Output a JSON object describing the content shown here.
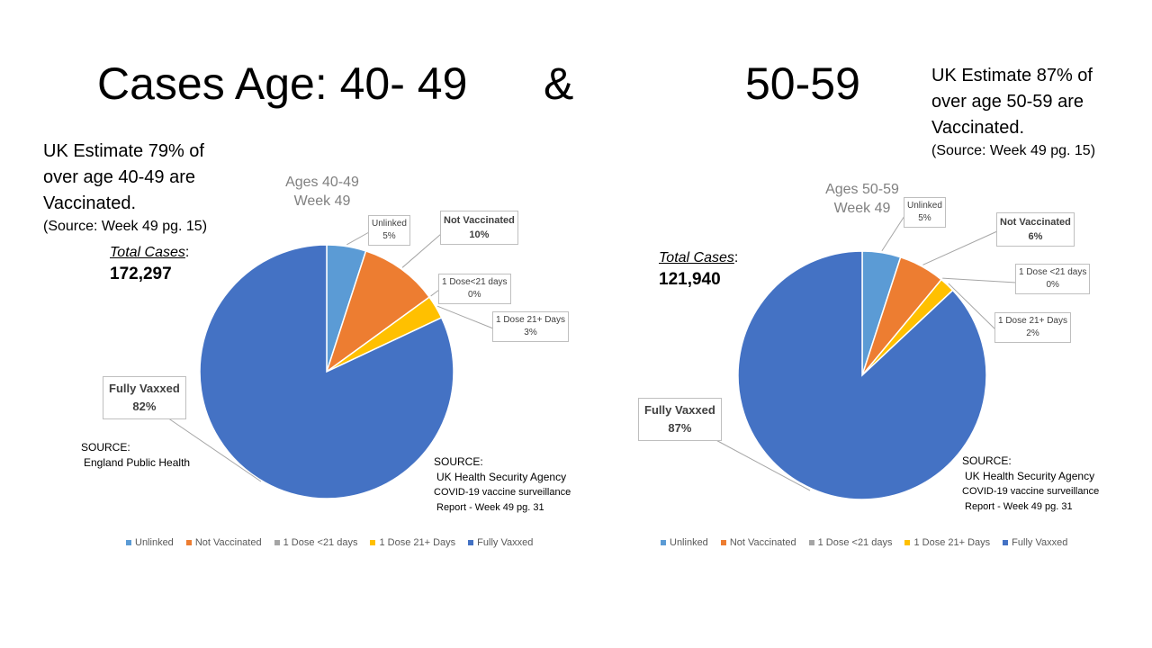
{
  "slide": {
    "title_left": "Cases Age: 40- 49",
    "title_amp": "&",
    "title_right": "50-59"
  },
  "legend_labels": [
    "Unlinked",
    "Not Vaccinated",
    "1 Dose <21 days",
    "1 Dose 21+ Days",
    "Fully Vaxxed"
  ],
  "colors": {
    "Unlinked": "#5b9bd5",
    "Not Vaccinated": "#ed7d31",
    "1 Dose <21 days": "#a5a5a5",
    "1 Dose 21+ Days": "#ffc000",
    "Fully Vaxxed": "#4472c4"
  },
  "left": {
    "estimate_line1": "UK Estimate 79% of",
    "estimate_line2": "over age 40-49 are",
    "estimate_line3": "Vaccinated.",
    "estimate_source": "(Source: Week 49 pg. 15)",
    "total_cases_label": "Total Cases",
    "total_cases_colon": ":",
    "total_cases_value": "172,297",
    "source_left_line1": "SOURCE:",
    "source_left_line2": "England Public Health",
    "source_right_line1": "SOURCE:",
    "source_right_line2": "UK Health Security Agency",
    "source_right_line3": "COVID-19 vaccine surveillance",
    "source_right_line4": "Report - Week 49   pg. 31",
    "callouts": {
      "unlinked": [
        "Unlinked",
        "5%"
      ],
      "not_vaccinated": [
        "Not Vaccinated",
        "10%"
      ],
      "dose_lt21": [
        "1 Dose<21 days",
        "0%"
      ],
      "dose_21plus": [
        "1 Dose 21+ Days",
        "3%"
      ],
      "fully": [
        "Fully Vaxxed",
        "82%"
      ]
    }
  },
  "right": {
    "estimate_line1": "UK Estimate 87% of",
    "estimate_line2": "over age 50-59 are",
    "estimate_line3": "Vaccinated.",
    "estimate_source": "(Source: Week 49 pg. 15)",
    "total_cases_label": "Total Cases",
    "total_cases_colon": ":",
    "total_cases_value": "121,940",
    "source_line1": "SOURCE:",
    "source_line2": "UK Health Security Agency",
    "source_line3": "COVID-19 vaccine surveillance",
    "source_line4": "Report - Week 49   pg. 31",
    "callouts": {
      "unlinked": [
        "Unlinked",
        "5%"
      ],
      "not_vaccinated": [
        "Not Vaccinated",
        "6%"
      ],
      "dose_lt21": [
        "1 Dose <21 days",
        "0%"
      ],
      "dose_21plus": [
        "1 Dose 21+ Days",
        "2%"
      ],
      "fully": [
        "Fully Vaxxed",
        "87%"
      ]
    }
  },
  "chart_data": [
    {
      "type": "pie",
      "title": "Ages 40-49 Week 49",
      "title_lines": [
        "Ages 40-49",
        "Week 49"
      ],
      "categories": [
        "Unlinked",
        "Not Vaccinated",
        "1 Dose <21 days",
        "1 Dose 21+ Days",
        "Fully Vaxxed"
      ],
      "values": [
        5,
        10,
        0,
        3,
        82
      ],
      "unit": "%",
      "legend": "bottom"
    },
    {
      "type": "pie",
      "title": "Ages 50-59 Week 49",
      "title_lines": [
        "Ages 50-59",
        "Week 49"
      ],
      "categories": [
        "Unlinked",
        "Not Vaccinated",
        "1 Dose <21 days",
        "1 Dose 21+ Days",
        "Fully Vaxxed"
      ],
      "values": [
        5,
        6,
        0,
        2,
        87
      ],
      "unit": "%",
      "legend": "bottom"
    }
  ]
}
